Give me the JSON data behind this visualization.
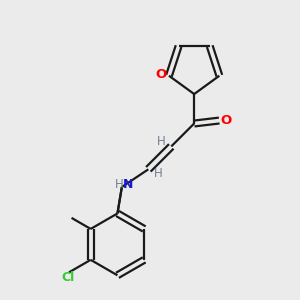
{
  "background_color": "#ebebeb",
  "bond_color": "#1a1a1a",
  "atom_colors": {
    "O": "#ff0000",
    "N": "#1a1acc",
    "Cl": "#33cc33",
    "H": "#708090"
  },
  "figsize": [
    3.0,
    3.0
  ],
  "dpi": 100
}
